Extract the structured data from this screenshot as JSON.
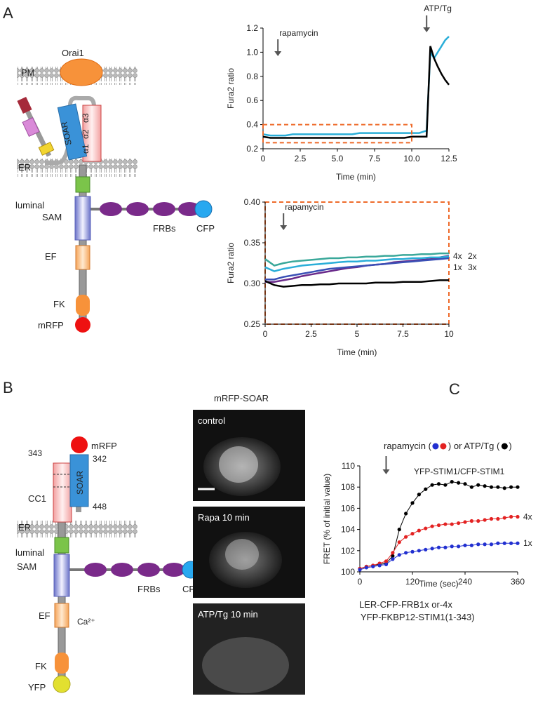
{
  "panel_labels": [
    "A",
    "B",
    "C"
  ],
  "diagram_a": {
    "orai": "Orai1",
    "pm": "PM",
    "soar": "SOAR",
    "alpha1": "α1",
    "alpha2": "α2",
    "alpha3": "α3",
    "er": "ER",
    "luminal": "luminal",
    "sam": "SAM",
    "frbs": "FRBs",
    "cfp": "CFP",
    "ef": "EF",
    "fk": "FK",
    "mrfp": "mRFP"
  },
  "diagram_b": {
    "mrfp": "mRFP",
    "n342": "342",
    "n343": "343",
    "cc1": "CC1",
    "soar": "SOAR",
    "n448": "448",
    "er": "ER",
    "luminal": "luminal",
    "sam": "SAM",
    "frbs": "FRBs",
    "cfp": "CFP",
    "ef": "EF",
    "ca": "Ca²⁺",
    "fk": "FK",
    "yfp": "YFP"
  },
  "micrographs": {
    "title": "mRFP-SOAR",
    "panels": [
      "control",
      "Rapa 10 min",
      "ATP/Tg 10 min"
    ]
  },
  "panel_c": {
    "annotation": [
      "rapamycin (",
      ") or ATP/Tg (",
      ")"
    ],
    "subtitle": "YFP-STIM1/CFP-STIM1",
    "captions": [
      "LER-CFP-FRB1x or-4x",
      "YFP-FKBP12-STIM1(1-343)"
    ]
  },
  "chart_data": [
    {
      "type": "line",
      "y_label": "Fura2 ratio",
      "x_label": "Time (min)",
      "xlim": [
        0,
        12.5
      ],
      "ylim": [
        0.2,
        1.2
      ],
      "xticks": [
        0,
        2.5,
        {
          "value": 5,
          "label": "5.0"
        },
        7.5,
        {
          "value": 10,
          "label": "10.0"
        },
        12.5
      ],
      "yticks": [
        0.2,
        0.4,
        0.6,
        0.8,
        {
          "value": 1,
          "label": "1.0"
        },
        1.2
      ],
      "annotations": [
        {
          "text": "rapamycin",
          "x": 1
        },
        {
          "text": "ATP/Tg",
          "x": 11
        }
      ],
      "x": [
        0,
        0.5,
        1,
        1.5,
        2,
        2.5,
        3,
        3.5,
        4,
        4.5,
        5,
        5.5,
        6,
        6.5,
        7,
        7.5,
        8,
        8.5,
        9,
        9.5,
        10,
        10.5,
        11,
        11.25,
        11.5,
        11.75,
        12,
        12.25,
        12.5
      ],
      "series": [
        {
          "color": "#2aaed8",
          "values": [
            0.32,
            0.31,
            0.31,
            0.31,
            0.32,
            0.32,
            0.32,
            0.32,
            0.32,
            0.32,
            0.32,
            0.32,
            0.32,
            0.33,
            0.33,
            0.33,
            0.33,
            0.33,
            0.33,
            0.33,
            0.33,
            0.33,
            0.35,
            1.0,
            0.95,
            1.0,
            1.05,
            1.1,
            1.13
          ]
        },
        {
          "color": "#000000",
          "values": [
            0.3,
            0.29,
            0.29,
            0.29,
            0.29,
            0.29,
            0.29,
            0.29,
            0.29,
            0.29,
            0.29,
            0.29,
            0.29,
            0.29,
            0.29,
            0.29,
            0.29,
            0.29,
            0.29,
            0.29,
            0.3,
            0.3,
            0.3,
            1.05,
            0.95,
            0.88,
            0.82,
            0.77,
            0.73
          ]
        }
      ]
    },
    {
      "type": "line",
      "y_label": "Fura2 ratio",
      "x_label": "Time (min)",
      "xlim": [
        0,
        10
      ],
      "ylim": [
        0.25,
        0.4
      ],
      "xticks": [
        0,
        2.5,
        5,
        7.5,
        10
      ],
      "yticks": [
        {
          "value": 0.25,
          "label": "0.25"
        },
        {
          "value": 0.3,
          "label": "0.30"
        },
        {
          "value": 0.35,
          "label": "0.35"
        },
        {
          "value": 0.4,
          "label": "0.40"
        }
      ],
      "annotations": [
        {
          "text": "rapamycin",
          "x": 1
        }
      ],
      "x": [
        0,
        0.5,
        1,
        1.5,
        2,
        2.5,
        3,
        3.5,
        4,
        4.5,
        5,
        5.5,
        6,
        6.5,
        7,
        7.5,
        8,
        8.5,
        9,
        9.5,
        10
      ],
      "series": [
        {
          "name": "4x",
          "color": "#6a2a8a",
          "values": [
            0.302,
            0.302,
            0.304,
            0.306,
            0.309,
            0.311,
            0.313,
            0.315,
            0.317,
            0.319,
            0.32,
            0.322,
            0.323,
            0.324,
            0.326,
            0.327,
            0.328,
            0.329,
            0.33,
            0.332,
            0.334
          ]
        },
        {
          "name": "2x",
          "color": "#3aa89a",
          "values": [
            0.33,
            0.322,
            0.325,
            0.327,
            0.328,
            0.329,
            0.33,
            0.331,
            0.331,
            0.332,
            0.332,
            0.333,
            0.333,
            0.334,
            0.334,
            0.335,
            0.335,
            0.336,
            0.336,
            0.337,
            0.337
          ]
        },
        {
          "name": "1x",
          "color": "#2aaed8",
          "values": [
            0.32,
            0.315,
            0.318,
            0.32,
            0.322,
            0.323,
            0.324,
            0.325,
            0.326,
            0.327,
            0.327,
            0.328,
            0.328,
            0.329,
            0.33,
            0.33,
            0.331,
            0.331,
            0.332,
            0.332,
            0.333
          ]
        },
        {
          "name": "3x",
          "color": "#3a4fb5",
          "values": [
            0.305,
            0.305,
            0.308,
            0.31,
            0.312,
            0.314,
            0.316,
            0.318,
            0.319,
            0.32,
            0.321,
            0.322,
            0.323,
            0.324,
            0.325,
            0.326,
            0.327,
            0.328,
            0.329,
            0.33,
            0.331
          ]
        },
        {
          "color": "#000000",
          "values": [
            0.303,
            0.298,
            0.296,
            0.297,
            0.298,
            0.298,
            0.299,
            0.299,
            0.3,
            0.3,
            0.3,
            0.3,
            0.301,
            0.301,
            0.301,
            0.302,
            0.302,
            0.302,
            0.303,
            0.304,
            0.304
          ]
        }
      ]
    },
    {
      "type": "line",
      "markers": true,
      "y_label": "FRET (% of initial value)",
      "x_label": "Time (sec)",
      "xlim": [
        0,
        360
      ],
      "ylim": [
        100,
        110
      ],
      "xticks": [
        0,
        120,
        240,
        360
      ],
      "yticks": [
        100,
        102,
        104,
        106,
        108,
        110
      ],
      "annotations": [
        {
          "x": 60
        }
      ],
      "x": [
        0,
        15,
        30,
        45,
        60,
        75,
        90,
        105,
        120,
        135,
        150,
        165,
        180,
        195,
        210,
        225,
        240,
        255,
        270,
        285,
        300,
        315,
        330,
        345,
        360
      ],
      "series": [
        {
          "color": "#000000",
          "values": [
            100.3,
            100.5,
            100.6,
            100.7,
            100.8,
            101.5,
            104,
            105.5,
            106.5,
            107.3,
            107.8,
            108.2,
            108.3,
            108.2,
            108.5,
            108.4,
            108.3,
            108.0,
            108.2,
            108.1,
            108.0,
            108.0,
            107.9,
            108.0,
            108.0
          ]
        },
        {
          "name": "4x",
          "color": "#e32222",
          "values": [
            100.3,
            100.5,
            100.6,
            100.8,
            101.0,
            101.8,
            102.8,
            103.3,
            103.6,
            103.9,
            104.1,
            104.3,
            104.4,
            104.5,
            104.5,
            104.6,
            104.7,
            104.8,
            104.8,
            104.9,
            105.0,
            105.0,
            105.1,
            105.2,
            105.2
          ]
        },
        {
          "name": "1x",
          "color": "#2230d0",
          "values": [
            100.2,
            100.4,
            100.5,
            100.6,
            100.7,
            101.2,
            101.6,
            101.8,
            101.9,
            102.0,
            102.1,
            102.2,
            102.3,
            102.3,
            102.4,
            102.4,
            102.5,
            102.5,
            102.6,
            102.6,
            102.6,
            102.7,
            102.7,
            102.7,
            102.7
          ]
        }
      ]
    }
  ]
}
